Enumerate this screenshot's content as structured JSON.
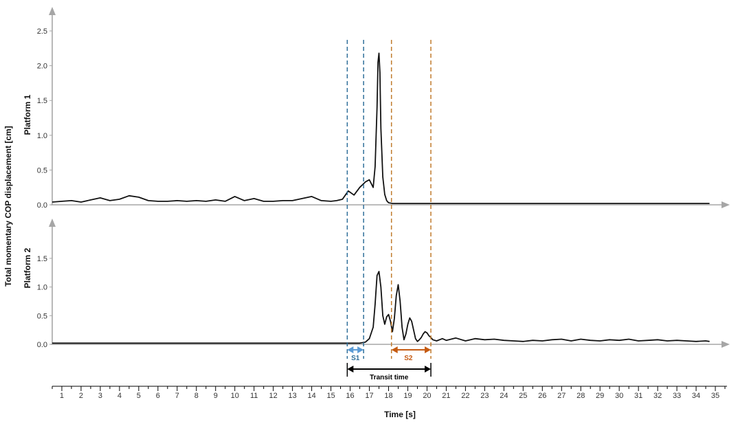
{
  "chart_data": {
    "type": "line",
    "ylabel": "Total  momentary  COP displacement [cm]",
    "xlabel": "Time [s]",
    "xlim": [
      0.5,
      35.5
    ],
    "x_ticks": [
      "1",
      "2",
      "3",
      "4",
      "5",
      "6",
      "7",
      "8",
      "9",
      "10",
      "11",
      "12",
      "13",
      "14",
      "15",
      "16",
      "17",
      "18",
      "19",
      "20",
      "21",
      "22",
      "23",
      "24",
      "25",
      "26",
      "27",
      "28",
      "29",
      "30",
      "31",
      "32",
      "33",
      "34",
      "35"
    ],
    "panels": [
      {
        "name": "Platform 1",
        "ylim": [
          0,
          2.5
        ],
        "y_ticks": [
          "0.0",
          "0.5",
          "1.0",
          "1.5",
          "2.0",
          "2.5"
        ],
        "series": {
          "x": [
            0.5,
            1,
            1.5,
            2,
            2.5,
            3,
            3.5,
            4,
            4.5,
            5,
            5.5,
            6,
            6.5,
            7,
            7.5,
            8,
            8.5,
            9,
            9.5,
            10,
            10.5,
            11,
            11.5,
            12,
            12.5,
            13,
            13.5,
            14,
            14.5,
            15,
            15.3,
            15.6,
            15.9,
            16.2,
            16.5,
            16.8,
            17.0,
            17.2,
            17.3,
            17.4,
            17.45,
            17.5,
            17.55,
            17.6,
            17.7,
            17.8,
            17.9,
            18.0,
            18.2,
            18.5,
            19,
            20,
            22,
            25,
            30,
            34.7
          ],
          "y": [
            0.04,
            0.05,
            0.06,
            0.04,
            0.07,
            0.1,
            0.06,
            0.08,
            0.13,
            0.11,
            0.06,
            0.05,
            0.05,
            0.06,
            0.05,
            0.06,
            0.05,
            0.07,
            0.05,
            0.12,
            0.06,
            0.09,
            0.05,
            0.05,
            0.06,
            0.06,
            0.09,
            0.12,
            0.06,
            0.05,
            0.06,
            0.08,
            0.2,
            0.14,
            0.25,
            0.33,
            0.36,
            0.25,
            0.55,
            1.4,
            2.05,
            2.18,
            1.9,
            1.1,
            0.4,
            0.15,
            0.06,
            0.03,
            0.02,
            0.02,
            0.02,
            0.02,
            0.02,
            0.02,
            0.02,
            0.02
          ]
        }
      },
      {
        "name": "Platform 2",
        "ylim": [
          0,
          1.75
        ],
        "y_ticks": [
          "0.0",
          "0.5",
          "1.0",
          "1.5"
        ],
        "series": {
          "x": [
            0.5,
            5,
            10,
            15,
            16.5,
            16.8,
            17.0,
            17.2,
            17.3,
            17.4,
            17.5,
            17.6,
            17.7,
            17.8,
            17.9,
            18.0,
            18.1,
            18.2,
            18.3,
            18.4,
            18.5,
            18.6,
            18.7,
            18.8,
            18.9,
            19.0,
            19.1,
            19.2,
            19.3,
            19.4,
            19.5,
            19.6,
            19.7,
            19.8,
            19.9,
            20.0,
            20.1,
            20.2,
            20.3,
            20.5,
            20.8,
            21.0,
            21.5,
            22.0,
            22.5,
            23.0,
            23.5,
            24.0,
            24.5,
            25.0,
            25.5,
            26.0,
            26.5,
            27.0,
            27.5,
            28.0,
            28.5,
            29.0,
            29.5,
            30.0,
            30.5,
            31.0,
            31.5,
            32.0,
            32.5,
            33.0,
            33.5,
            34.0,
            34.5,
            34.7
          ],
          "y": [
            0.02,
            0.02,
            0.02,
            0.02,
            0.02,
            0.04,
            0.1,
            0.3,
            0.7,
            1.2,
            1.27,
            1.0,
            0.5,
            0.35,
            0.48,
            0.52,
            0.4,
            0.22,
            0.45,
            0.85,
            1.04,
            0.75,
            0.3,
            0.08,
            0.18,
            0.35,
            0.46,
            0.4,
            0.25,
            0.1,
            0.05,
            0.08,
            0.12,
            0.18,
            0.22,
            0.2,
            0.15,
            0.12,
            0.08,
            0.06,
            0.1,
            0.07,
            0.11,
            0.06,
            0.1,
            0.08,
            0.09,
            0.07,
            0.06,
            0.05,
            0.07,
            0.06,
            0.08,
            0.09,
            0.06,
            0.09,
            0.07,
            0.06,
            0.08,
            0.07,
            0.09,
            0.06,
            0.07,
            0.08,
            0.06,
            0.07,
            0.06,
            0.05,
            0.06,
            0.05
          ]
        }
      }
    ],
    "markers": {
      "s1_lines": [
        15.85,
        16.7
      ],
      "s2_lines": [
        18.15,
        20.2
      ],
      "s1_color": "#2e6e99",
      "s2_color": "#c07a2c"
    },
    "annotations": {
      "s1_label": "S1",
      "s2_label": "S2",
      "transit_label": "Transit time",
      "s1_arrow_color": "#5b9bd5",
      "s2_arrow_color": "#c55a11"
    }
  }
}
